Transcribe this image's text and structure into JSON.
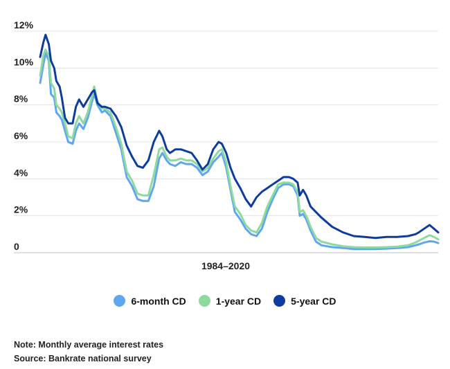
{
  "chart_data": {
    "type": "line",
    "xlabel": "1984–2020",
    "x_range": [
      1984,
      2020.8
    ],
    "ylim": [
      0,
      12
    ],
    "y_ticks": [
      0,
      2,
      4,
      6,
      8,
      10,
      12
    ],
    "y_tick_labels": [
      "0",
      "2%",
      "4%",
      "6%",
      "8%",
      "10%",
      "12%"
    ],
    "grid": true,
    "legend_position": "bottom-center",
    "series": [
      {
        "name": "6-month CD",
        "color": "#5fa6f0",
        "x": [
          1984.0,
          1984.3,
          1984.5,
          1984.8,
          1985.0,
          1985.3,
          1985.5,
          1985.8,
          1986.0,
          1986.3,
          1986.6,
          1987.0,
          1987.3,
          1987.6,
          1988.0,
          1988.4,
          1988.8,
          1989.0,
          1989.3,
          1989.7,
          1990.0,
          1990.5,
          1991.0,
          1991.5,
          1992.0,
          1992.5,
          1993.0,
          1993.5,
          1994.0,
          1994.5,
          1995.0,
          1995.3,
          1995.7,
          1996.0,
          1996.5,
          1997.0,
          1997.5,
          1998.0,
          1998.5,
          1999.0,
          1999.5,
          2000.0,
          2000.5,
          2000.8,
          2001.2,
          2001.6,
          2002.0,
          2002.5,
          2003.0,
          2003.5,
          2004.0,
          2004.5,
          2005.0,
          2005.5,
          2006.0,
          2006.5,
          2007.0,
          2007.4,
          2007.8,
          2008.0,
          2008.3,
          2008.6,
          2009.0,
          2009.5,
          2010.0,
          2011.0,
          2012.0,
          2013.0,
          2014.0,
          2015.0,
          2016.0,
          2017.0,
          2018.0,
          2018.7,
          2019.0,
          2019.5,
          2020.0,
          2020.4,
          2020.8
        ],
        "y": [
          9.2,
          10.2,
          10.8,
          10.4,
          8.6,
          8.4,
          7.6,
          7.4,
          7.2,
          6.6,
          6.0,
          5.9,
          6.6,
          7.0,
          6.7,
          7.3,
          8.2,
          8.6,
          8.0,
          7.6,
          7.7,
          7.4,
          6.5,
          5.6,
          4.1,
          3.6,
          2.9,
          2.8,
          2.8,
          3.6,
          5.1,
          5.4,
          5.0,
          4.8,
          4.7,
          4.9,
          4.8,
          4.8,
          4.6,
          4.2,
          4.4,
          4.9,
          5.2,
          5.4,
          4.6,
          3.4,
          2.2,
          1.8,
          1.3,
          1.0,
          0.9,
          1.3,
          2.2,
          2.9,
          3.5,
          3.7,
          3.7,
          3.6,
          3.1,
          2.0,
          2.1,
          1.8,
          1.2,
          0.6,
          0.4,
          0.3,
          0.25,
          0.2,
          0.2,
          0.2,
          0.22,
          0.25,
          0.3,
          0.4,
          0.45,
          0.55,
          0.62,
          0.6,
          0.52
        ]
      },
      {
        "name": "1-year CD",
        "color": "#8ed99d",
        "x": [
          1984.0,
          1984.3,
          1984.5,
          1984.8,
          1985.0,
          1985.3,
          1985.5,
          1985.8,
          1986.0,
          1986.3,
          1986.6,
          1987.0,
          1987.3,
          1987.6,
          1988.0,
          1988.4,
          1988.8,
          1989.0,
          1989.3,
          1989.7,
          1990.0,
          1990.5,
          1991.0,
          1991.5,
          1992.0,
          1992.5,
          1993.0,
          1993.5,
          1994.0,
          1994.5,
          1995.0,
          1995.3,
          1995.7,
          1996.0,
          1996.5,
          1997.0,
          1997.5,
          1998.0,
          1998.5,
          1999.0,
          1999.5,
          2000.0,
          2000.5,
          2000.8,
          2001.2,
          2001.6,
          2002.0,
          2002.5,
          2003.0,
          2003.5,
          2004.0,
          2004.5,
          2005.0,
          2005.5,
          2006.0,
          2006.5,
          2007.0,
          2007.4,
          2007.8,
          2008.0,
          2008.3,
          2008.6,
          2009.0,
          2009.5,
          2010.0,
          2011.0,
          2012.0,
          2013.0,
          2014.0,
          2015.0,
          2016.0,
          2017.0,
          2018.0,
          2018.7,
          2019.0,
          2019.5,
          2020.0,
          2020.4,
          2020.8
        ],
        "y": [
          9.6,
          10.7,
          11.0,
          10.7,
          9.2,
          8.9,
          8.0,
          7.8,
          7.6,
          7.0,
          6.3,
          6.2,
          7.0,
          7.4,
          7.0,
          7.6,
          8.5,
          9.0,
          8.2,
          7.8,
          7.8,
          7.6,
          6.8,
          5.9,
          4.4,
          3.9,
          3.2,
          3.1,
          3.1,
          4.2,
          5.6,
          5.7,
          5.2,
          5.0,
          5.0,
          5.1,
          5.0,
          5.0,
          4.8,
          4.4,
          4.6,
          5.1,
          5.5,
          5.6,
          4.9,
          3.6,
          2.5,
          2.1,
          1.5,
          1.2,
          1.1,
          1.6,
          2.5,
          3.1,
          3.7,
          3.8,
          3.8,
          3.7,
          3.3,
          2.2,
          2.3,
          2.0,
          1.4,
          0.8,
          0.6,
          0.45,
          0.35,
          0.3,
          0.28,
          0.28,
          0.3,
          0.33,
          0.4,
          0.55,
          0.65,
          0.8,
          0.95,
          0.85,
          0.72
        ]
      },
      {
        "name": "5-year CD",
        "color": "#0d3b9e",
        "x": [
          1984.0,
          1984.3,
          1984.5,
          1984.8,
          1985.0,
          1985.3,
          1985.5,
          1985.8,
          1986.0,
          1986.3,
          1986.6,
          1987.0,
          1987.3,
          1987.6,
          1988.0,
          1988.4,
          1988.8,
          1989.0,
          1989.3,
          1989.7,
          1990.0,
          1990.5,
          1991.0,
          1991.5,
          1992.0,
          1992.5,
          1993.0,
          1993.5,
          1994.0,
          1994.5,
          1995.0,
          1995.3,
          1995.7,
          1996.0,
          1996.5,
          1997.0,
          1997.5,
          1998.0,
          1998.5,
          1999.0,
          1999.5,
          2000.0,
          2000.5,
          2000.8,
          2001.2,
          2001.6,
          2002.0,
          2002.5,
          2003.0,
          2003.5,
          2004.0,
          2004.5,
          2005.0,
          2005.5,
          2006.0,
          2006.5,
          2007.0,
          2007.4,
          2007.8,
          2008.0,
          2008.3,
          2008.6,
          2009.0,
          2009.5,
          2010.0,
          2011.0,
          2012.0,
          2013.0,
          2014.0,
          2015.0,
          2016.0,
          2017.0,
          2018.0,
          2018.7,
          2019.0,
          2019.5,
          2020.0,
          2020.4,
          2020.8
        ],
        "y": [
          10.6,
          11.4,
          11.8,
          11.3,
          10.4,
          10.0,
          9.3,
          9.0,
          8.4,
          7.3,
          7.0,
          7.0,
          7.9,
          8.3,
          7.9,
          8.3,
          8.7,
          8.8,
          8.1,
          7.9,
          7.9,
          7.8,
          7.4,
          6.8,
          5.8,
          5.2,
          4.7,
          4.6,
          5.0,
          6.0,
          6.6,
          6.3,
          5.6,
          5.4,
          5.6,
          5.6,
          5.5,
          5.4,
          5.0,
          4.5,
          4.8,
          5.6,
          6.0,
          5.9,
          5.4,
          4.6,
          4.0,
          3.5,
          2.9,
          2.5,
          3.0,
          3.3,
          3.5,
          3.7,
          3.9,
          4.1,
          4.1,
          4.0,
          3.8,
          3.1,
          3.4,
          3.1,
          2.5,
          2.2,
          1.9,
          1.4,
          1.1,
          0.9,
          0.85,
          0.8,
          0.85,
          0.85,
          0.9,
          1.0,
          1.1,
          1.3,
          1.5,
          1.3,
          1.1
        ]
      }
    ]
  },
  "notes": {
    "note": "Note: Monthly average interest rates",
    "source": "Source: Bankrate national survey"
  }
}
